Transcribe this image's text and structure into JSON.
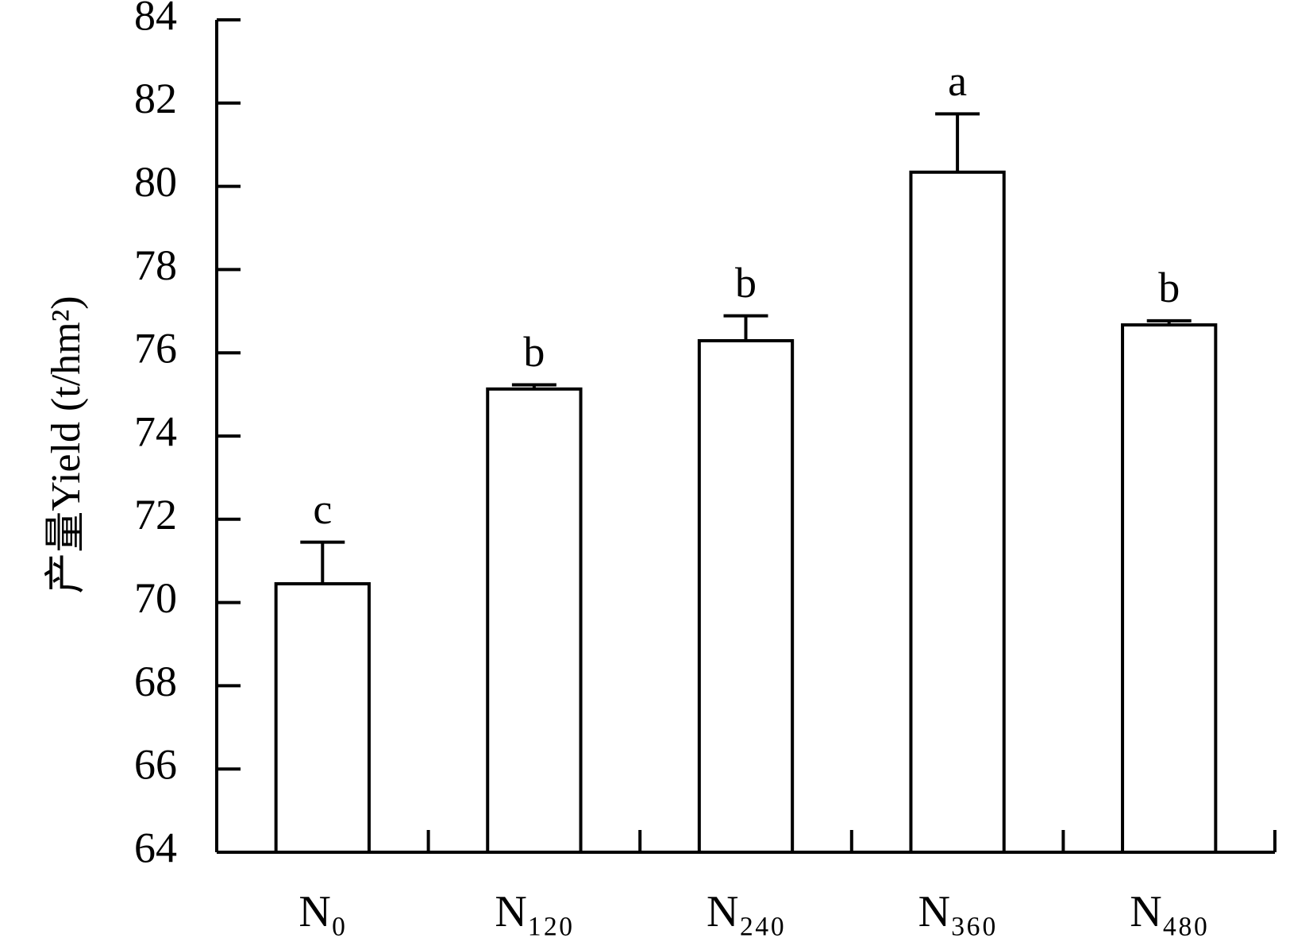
{
  "chart_data": {
    "type": "bar",
    "y_label": "产量Yield (t/hm²)",
    "categories": [
      "N₀",
      "N₁₂₀",
      "N₂₄₀",
      "N₃₆₀",
      "N₄₈₀"
    ],
    "values": [
      70.45,
      75.13,
      76.29,
      80.34,
      76.67
    ],
    "errors": [
      1.0,
      0.1,
      0.6,
      1.4,
      0.1
    ],
    "labels": [
      "c",
      "b",
      "b",
      "a",
      "b"
    ],
    "color": "#ffffff",
    "ylim": [
      64,
      84
    ],
    "yticks": [
      64,
      66,
      68,
      70,
      72,
      74,
      76,
      78,
      80,
      82,
      84
    ],
    "grid": false
  }
}
